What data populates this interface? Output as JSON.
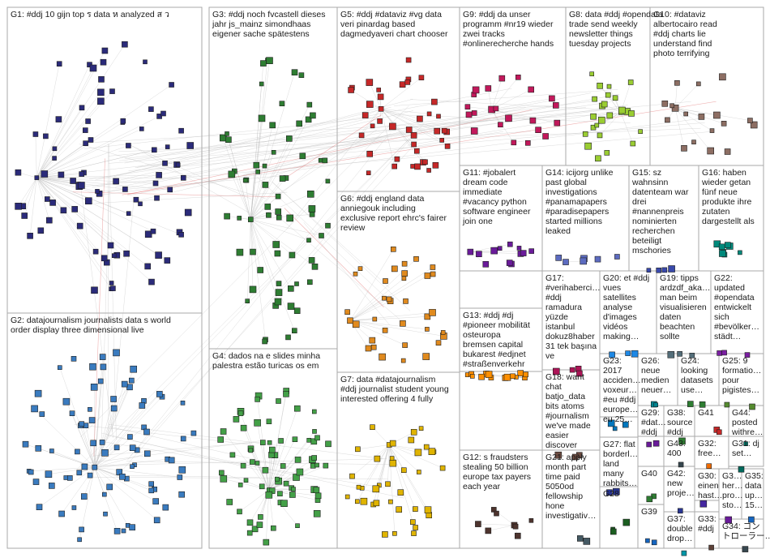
{
  "groups": [
    {
      "id": "G1",
      "lines": [
        "G1: #ddj 10 gijn top ร data ห analyzed ส ว"
      ],
      "color": "#2b2b7a"
    },
    {
      "id": "G2",
      "lines": [
        "G2: datajournalism journalists data s world",
        "order display three dimensional live"
      ],
      "color": "#3a7bbf"
    },
    {
      "id": "G3",
      "lines": [
        "G3: #ddj noch fvcastell dieses",
        "jahr js_mainz simondhaas",
        "eigener sache spätestens"
      ],
      "color": "#2e7d32"
    },
    {
      "id": "G4",
      "lines": [
        "G4: dados na e slides minha",
        "palestra estão turicas os em"
      ],
      "color": "#43a047"
    },
    {
      "id": "G5",
      "lines": [
        "G5: #ddj #dataviz #vg data",
        "veri pinardag based",
        "dagmedyaveri chart chooser"
      ],
      "color": "#c62828"
    },
    {
      "id": "G6",
      "lines": [
        "G6: #ddj england data",
        "anniegouk including",
        "exclusive report ehrc's fairer",
        "review"
      ],
      "color": "#e08a1e"
    },
    {
      "id": "G7",
      "lines": [
        "G7: data #datajournalism",
        "#ddj journalist student young",
        "interested offering 4 fully"
      ],
      "color": "#e0b400"
    },
    {
      "id": "G8",
      "lines": [
        "G8: data #ddj #opendata",
        "trade send weekly",
        "newsletter things",
        "tuesday projects"
      ],
      "color": "#9acd32"
    },
    {
      "id": "G9",
      "lines": [
        "G9: #ddj da unser",
        "programm #nr19 wieder",
        "zwei tracks",
        "#onlinerecherche hands"
      ],
      "color": "#c2185b"
    },
    {
      "id": "G10",
      "lines": [
        "G10: #dataviz",
        "albertocairo read",
        "#ddj charts lie",
        "understand find",
        "photo terrifying"
      ],
      "color": "#8d6e63"
    },
    {
      "id": "G11",
      "lines": [
        "G11: #jobalert",
        "dream code",
        "immediate",
        "#vacancy python",
        "software engineer",
        "join one"
      ],
      "color": "#6a1b9a"
    },
    {
      "id": "G12",
      "lines": [
        "G12: s fraudsters",
        "stealing 50 billion",
        "europe tax payers",
        "each year"
      ],
      "color": "#4e342e"
    },
    {
      "id": "G13",
      "lines": [
        "G13: #ddj #dj",
        "#pioneer mobilität",
        "osteuropa",
        "bremsen capital",
        "bukarest #edjnet",
        "#straßenverkehr"
      ],
      "color": "#ff8f00"
    },
    {
      "id": "G14",
      "lines": [
        "G14: icijorg unlike",
        "past global",
        "investigations",
        "#panamapapers",
        "#paradisepapers",
        "started millions",
        "leaked"
      ],
      "color": "#5c6bc0"
    },
    {
      "id": "G15",
      "lines": [
        "G15: sz",
        "wahnsinn",
        "datenteam war",
        "drei",
        "#nannenpreis",
        "nominierten",
        "recherchen",
        "beteiligt",
        "mschories"
      ],
      "color": "#3949ab"
    },
    {
      "id": "G16",
      "lines": [
        "G16: haben",
        "wieder getan",
        "fünf neue",
        "produkte ihre",
        "zutaten",
        "dargestellt als"
      ],
      "color": "#00897b"
    },
    {
      "id": "G17",
      "lines": [
        "G17:",
        "#verihaberci…",
        "#ddj",
        "ramadura",
        "yüzde",
        "istanbul",
        "dokuz8haber",
        "31 tek başına",
        "ve"
      ],
      "color": "#ad1457"
    },
    {
      "id": "G18",
      "lines": [
        "G18: want",
        "chat",
        "batjo_data",
        "bits atoms",
        "#journalism",
        "we've made",
        "easier",
        "discover"
      ],
      "color": "#6d4c41"
    },
    {
      "id": "G19",
      "lines": [
        "G19: tipps",
        "ardzdf_aka…",
        "man beim",
        "visualisieren",
        "daten",
        "beachten",
        "sollte"
      ],
      "color": "#546e7a"
    },
    {
      "id": "G20",
      "lines": [
        "G20: et #ddj",
        "vues",
        "satellites",
        "analyse",
        "d'images",
        "vidéos",
        "making…"
      ],
      "color": "#1e88e5"
    },
    {
      "id": "G21",
      "lines": [
        "G21: apply",
        "month part",
        "time paid",
        "5050od",
        "fellowship",
        "hone",
        "investigativ…"
      ],
      "color": "#455a64"
    },
    {
      "id": "G22",
      "lines": [
        "G22:",
        "updated",
        "#opendata",
        "entwickelt",
        "sich",
        "#bevölker…",
        "städt…"
      ],
      "color": "#7b1fa2"
    },
    {
      "id": "G23",
      "lines": [
        "G23:",
        "2017",
        "acciden…",
        "voxeur…",
        "#eu #ddj",
        "europe…",
        "eu 25…"
      ],
      "color": "#0277bd"
    },
    {
      "id": "G24",
      "lines": [
        "G24:",
        "looking",
        "datasets",
        "use…"
      ],
      "color": "#2e7d32"
    },
    {
      "id": "G25",
      "lines": [
        "G25: 9",
        "formatio…",
        "pour",
        "pigistes…"
      ],
      "color": "#558b2f"
    },
    {
      "id": "G26",
      "lines": [
        "G26:",
        "neue",
        "medien",
        "neuer…"
      ],
      "color": "#00838f"
    },
    {
      "id": "G27",
      "lines": [
        "G27: flat",
        "borderl…",
        "land",
        "many",
        "rabbits…"
      ],
      "color": "#283593"
    },
    {
      "id": "G28",
      "lines": [
        "G28"
      ],
      "color": "#1b5e20"
    },
    {
      "id": "G29",
      "lines": [
        "G29:",
        "#dat…",
        "#ddj"
      ],
      "color": "#6a1b9a"
    },
    {
      "id": "G30",
      "lines": [
        "G30:",
        "einen",
        "hast…"
      ],
      "color": "#4527a0"
    },
    {
      "id": "G31",
      "lines": [
        "G31: dj",
        "set…"
      ],
      "color": "#00695c"
    },
    {
      "id": "G32",
      "lines": [
        "G32:",
        "free…"
      ],
      "color": "#ef6c00"
    },
    {
      "id": "G33",
      "lines": [
        "G33:",
        "#ddj"
      ],
      "color": "#5d4037"
    },
    {
      "id": "G34",
      "lines": [
        "G34: コン",
        "トローラー…"
      ],
      "color": "#37474f"
    },
    {
      "id": "G35",
      "lines": [
        "G35:",
        "data",
        "up…",
        "15…"
      ],
      "color": "#1565c0"
    },
    {
      "id": "G36",
      "lines": [
        "G3…",
        "her…",
        "pro…",
        "sto…"
      ],
      "color": "#6a1b9a"
    },
    {
      "id": "G37",
      "lines": [
        "G37:",
        "double",
        "drop…"
      ],
      "color": "#0097a7"
    },
    {
      "id": "G38",
      "lines": [
        "G38:",
        "source",
        "#ddj"
      ],
      "color": "#2e7d32"
    },
    {
      "id": "G39",
      "lines": [
        "G39"
      ],
      "color": "#1565c0"
    },
    {
      "id": "G40",
      "lines": [
        "G40"
      ],
      "color": "#2e7d32"
    },
    {
      "id": "G41",
      "lines": [
        "G41"
      ],
      "color": "#c62828"
    },
    {
      "id": "G42",
      "lines": [
        "G42:",
        "new",
        "proje…"
      ],
      "color": "#283593"
    },
    {
      "id": "G43",
      "lines": [
        "G43:",
        "400"
      ],
      "color": "#37474f"
    },
    {
      "id": "G44",
      "lines": [
        "G44:",
        "posted",
        "withre…"
      ],
      "color": "#00796b"
    }
  ]
}
